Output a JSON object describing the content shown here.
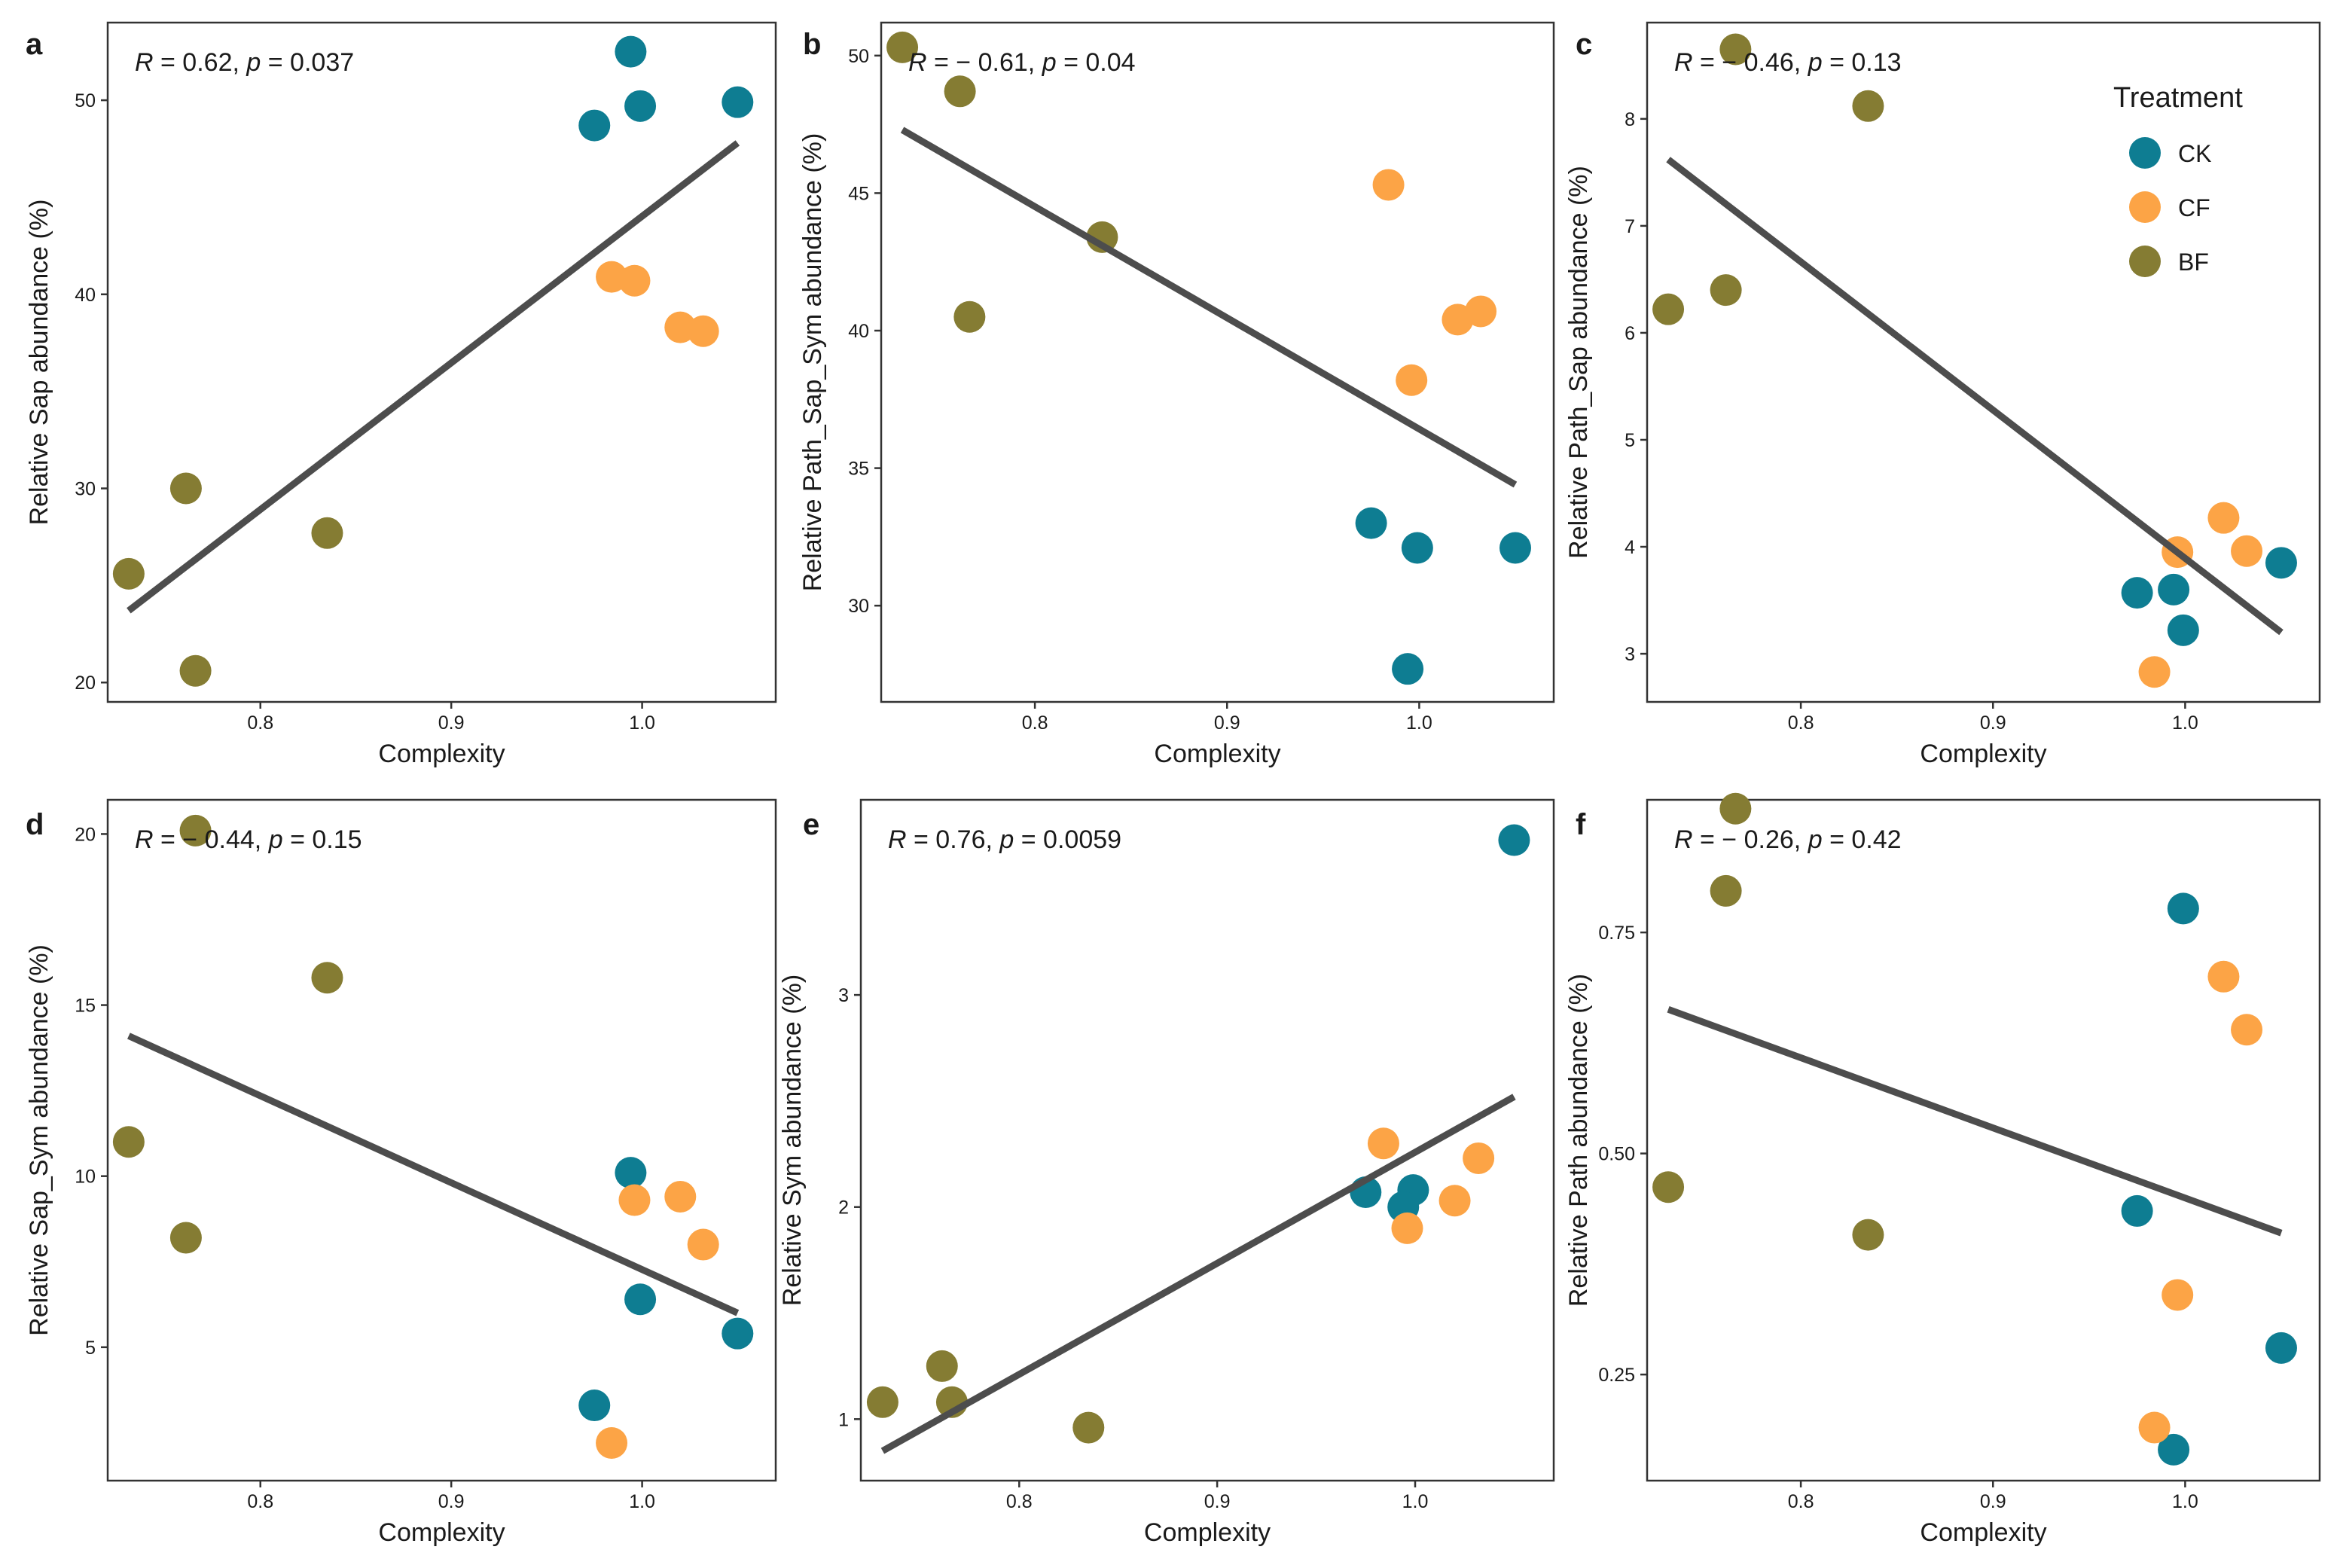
{
  "colors": {
    "CK": "#0e7d92",
    "CF": "#fca446",
    "BF": "#857c33",
    "fit_line": "#4d4d4d",
    "frame": "#333333"
  },
  "legend": {
    "title": "Treatment",
    "items": [
      {
        "key": "CK",
        "label": "CK"
      },
      {
        "key": "CF",
        "label": "CF"
      },
      {
        "key": "BF",
        "label": "BF"
      }
    ]
  },
  "chart_data": [
    {
      "panel": "a",
      "type": "scatter",
      "xlabel": "Complexity",
      "ylabel": "Relative Sap abundance (%)",
      "stat": {
        "r": "0.62",
        "p": "0.037"
      },
      "xlim": [
        0.72,
        1.07
      ],
      "ylim": [
        19,
        54
      ],
      "xticks": [
        0.8,
        0.9,
        1.0
      ],
      "xtick_labels": [
        "0.8",
        "0.9",
        "1.0"
      ],
      "yticks": [
        20,
        30,
        40,
        50
      ],
      "ytick_labels": [
        "20",
        "30",
        "40",
        "50"
      ],
      "fit": {
        "x": [
          0.731,
          1.05
        ],
        "y": [
          23.7,
          47.8
        ]
      },
      "points": [
        {
          "x": 0.994,
          "y": 52.5,
          "group": "CK"
        },
        {
          "x": 0.999,
          "y": 49.7,
          "group": "CK"
        },
        {
          "x": 1.05,
          "y": 49.9,
          "group": "CK"
        },
        {
          "x": 0.975,
          "y": 48.7,
          "group": "CK"
        },
        {
          "x": 0.984,
          "y": 40.9,
          "group": "CF"
        },
        {
          "x": 0.996,
          "y": 40.7,
          "group": "CF"
        },
        {
          "x": 1.02,
          "y": 38.3,
          "group": "CF"
        },
        {
          "x": 1.032,
          "y": 38.1,
          "group": "CF"
        },
        {
          "x": 0.731,
          "y": 25.6,
          "group": "BF"
        },
        {
          "x": 0.761,
          "y": 30.0,
          "group": "BF"
        },
        {
          "x": 0.766,
          "y": 20.6,
          "group": "BF"
        },
        {
          "x": 0.835,
          "y": 27.7,
          "group": "BF"
        }
      ]
    },
    {
      "panel": "b",
      "type": "scatter",
      "xlabel": "Complexity",
      "ylabel": "Relative Path_Sap_Sym abundance (%)",
      "stat": {
        "r": "− 0.61",
        "p": "0.04"
      },
      "xlim": [
        0.72,
        1.07
      ],
      "ylim": [
        26.5,
        51.2
      ],
      "xticks": [
        0.8,
        0.9,
        1.0
      ],
      "xtick_labels": [
        "0.8",
        "0.9",
        "1.0"
      ],
      "yticks": [
        30,
        35,
        40,
        45,
        50
      ],
      "ytick_labels": [
        "30",
        "35",
        "40",
        "45",
        "50"
      ],
      "fit": {
        "x": [
          0.731,
          1.05
        ],
        "y": [
          47.3,
          34.4
        ]
      },
      "points": [
        {
          "x": 0.975,
          "y": 33.0,
          "group": "CK"
        },
        {
          "x": 0.999,
          "y": 32.1,
          "group": "CK"
        },
        {
          "x": 1.05,
          "y": 32.1,
          "group": "CK"
        },
        {
          "x": 0.994,
          "y": 27.7,
          "group": "CK"
        },
        {
          "x": 0.984,
          "y": 45.3,
          "group": "CF"
        },
        {
          "x": 0.996,
          "y": 38.2,
          "group": "CF"
        },
        {
          "x": 1.02,
          "y": 40.4,
          "group": "CF"
        },
        {
          "x": 1.032,
          "y": 40.7,
          "group": "CF"
        },
        {
          "x": 0.731,
          "y": 50.3,
          "group": "BF"
        },
        {
          "x": 0.761,
          "y": 48.7,
          "group": "BF"
        },
        {
          "x": 0.766,
          "y": 40.5,
          "group": "BF"
        },
        {
          "x": 0.835,
          "y": 43.4,
          "group": "BF"
        }
      ]
    },
    {
      "panel": "c",
      "type": "scatter",
      "xlabel": "Complexity",
      "ylabel": "Relative Path_Sap abundance (%)",
      "stat": {
        "r": "− 0.46",
        "p": "0.13"
      },
      "xlim": [
        0.72,
        1.07
      ],
      "ylim": [
        2.55,
        8.9
      ],
      "xticks": [
        0.8,
        0.9,
        1.0
      ],
      "xtick_labels": [
        "0.8",
        "0.9",
        "1.0"
      ],
      "yticks": [
        3,
        4,
        5,
        6,
        7,
        8
      ],
      "ytick_labels": [
        "3",
        "4",
        "5",
        "6",
        "7",
        "8"
      ],
      "fit": {
        "x": [
          0.731,
          1.05
        ],
        "y": [
          7.62,
          3.2
        ]
      },
      "points": [
        {
          "x": 0.975,
          "y": 3.57,
          "group": "CK"
        },
        {
          "x": 0.994,
          "y": 3.6,
          "group": "CK"
        },
        {
          "x": 0.999,
          "y": 3.22,
          "group": "CK"
        },
        {
          "x": 1.05,
          "y": 3.85,
          "group": "CK"
        },
        {
          "x": 0.984,
          "y": 2.83,
          "group": "CF"
        },
        {
          "x": 0.996,
          "y": 3.95,
          "group": "CF"
        },
        {
          "x": 1.02,
          "y": 4.27,
          "group": "CF"
        },
        {
          "x": 1.032,
          "y": 3.96,
          "group": "CF"
        },
        {
          "x": 0.731,
          "y": 6.22,
          "group": "BF"
        },
        {
          "x": 0.761,
          "y": 6.4,
          "group": "BF"
        },
        {
          "x": 0.766,
          "y": 8.65,
          "group": "BF"
        },
        {
          "x": 0.835,
          "y": 8.12,
          "group": "BF"
        }
      ]
    },
    {
      "panel": "d",
      "type": "scatter",
      "xlabel": "Complexity",
      "ylabel": "Relative Sap_Sym abundance (%)",
      "stat": {
        "r": "− 0.44",
        "p": "0.15"
      },
      "xlim": [
        0.72,
        1.07
      ],
      "ylim": [
        1.1,
        21.0
      ],
      "xticks": [
        0.8,
        0.9,
        1.0
      ],
      "xtick_labels": [
        "0.8",
        "0.9",
        "1.0"
      ],
      "yticks": [
        5,
        10,
        15,
        20
      ],
      "ytick_labels": [
        "5",
        "10",
        "15",
        "20"
      ],
      "fit": {
        "x": [
          0.731,
          1.05
        ],
        "y": [
          14.1,
          6.0
        ]
      },
      "points": [
        {
          "x": 0.994,
          "y": 10.1,
          "group": "CK"
        },
        {
          "x": 0.999,
          "y": 6.4,
          "group": "CK"
        },
        {
          "x": 1.05,
          "y": 5.4,
          "group": "CK"
        },
        {
          "x": 0.975,
          "y": 3.3,
          "group": "CK"
        },
        {
          "x": 0.996,
          "y": 9.3,
          "group": "CF"
        },
        {
          "x": 1.02,
          "y": 9.4,
          "group": "CF"
        },
        {
          "x": 1.032,
          "y": 8.0,
          "group": "CF"
        },
        {
          "x": 0.984,
          "y": 2.2,
          "group": "CF"
        },
        {
          "x": 0.766,
          "y": 20.1,
          "group": "BF"
        },
        {
          "x": 0.835,
          "y": 15.8,
          "group": "BF"
        },
        {
          "x": 0.731,
          "y": 11.0,
          "group": "BF"
        },
        {
          "x": 0.761,
          "y": 8.2,
          "group": "BF"
        }
      ]
    },
    {
      "panel": "e",
      "type": "scatter",
      "xlabel": "Complexity",
      "ylabel": "Relative Sym abundance (%)",
      "stat": {
        "r": "0.76",
        "p": "0.0059"
      },
      "xlim": [
        0.72,
        1.07
      ],
      "ylim": [
        0.71,
        3.92
      ],
      "xticks": [
        0.8,
        0.9,
        1.0
      ],
      "xtick_labels": [
        "0.8",
        "0.9",
        "1.0"
      ],
      "yticks": [
        1,
        2,
        3
      ],
      "ytick_labels": [
        "1",
        "2",
        "3"
      ],
      "fit": {
        "x": [
          0.731,
          1.05
        ],
        "y": [
          0.85,
          2.52
        ]
      },
      "points": [
        {
          "x": 1.05,
          "y": 3.73,
          "group": "CK"
        },
        {
          "x": 0.975,
          "y": 2.07,
          "group": "CK"
        },
        {
          "x": 0.999,
          "y": 2.08,
          "group": "CK"
        },
        {
          "x": 0.994,
          "y": 2.0,
          "group": "CK"
        },
        {
          "x": 0.984,
          "y": 2.3,
          "group": "CF"
        },
        {
          "x": 1.032,
          "y": 2.23,
          "group": "CF"
        },
        {
          "x": 1.02,
          "y": 2.03,
          "group": "CF"
        },
        {
          "x": 0.996,
          "y": 1.9,
          "group": "CF"
        },
        {
          "x": 0.731,
          "y": 1.08,
          "group": "BF"
        },
        {
          "x": 0.761,
          "y": 1.25,
          "group": "BF"
        },
        {
          "x": 0.766,
          "y": 1.08,
          "group": "BF"
        },
        {
          "x": 0.835,
          "y": 0.96,
          "group": "BF"
        }
      ]
    },
    {
      "panel": "f",
      "type": "scatter",
      "xlabel": "Complexity",
      "ylabel": "Relative Path abundance (%)",
      "stat": {
        "r": "− 0.26",
        "p": "0.42"
      },
      "xlim": [
        0.72,
        1.07
      ],
      "ylim": [
        0.13,
        0.9
      ],
      "xticks": [
        0.8,
        0.9,
        1.0
      ],
      "xtick_labels": [
        "0.8",
        "0.9",
        "1.0"
      ],
      "yticks": [
        0.25,
        0.5,
        0.75
      ],
      "ytick_labels": [
        "0.25",
        "0.50",
        "0.75"
      ],
      "fit": {
        "x": [
          0.731,
          1.05
        ],
        "y": [
          0.663,
          0.41
        ]
      },
      "points": [
        {
          "x": 0.999,
          "y": 0.777,
          "group": "CK"
        },
        {
          "x": 0.975,
          "y": 0.435,
          "group": "CK"
        },
        {
          "x": 1.05,
          "y": 0.28,
          "group": "CK"
        },
        {
          "x": 0.994,
          "y": 0.165,
          "group": "CK"
        },
        {
          "x": 1.02,
          "y": 0.7,
          "group": "CF"
        },
        {
          "x": 1.032,
          "y": 0.64,
          "group": "CF"
        },
        {
          "x": 0.996,
          "y": 0.34,
          "group": "CF"
        },
        {
          "x": 0.984,
          "y": 0.19,
          "group": "CF"
        },
        {
          "x": 0.766,
          "y": 0.89,
          "group": "BF"
        },
        {
          "x": 0.761,
          "y": 0.797,
          "group": "BF"
        },
        {
          "x": 0.731,
          "y": 0.462,
          "group": "BF"
        },
        {
          "x": 0.835,
          "y": 0.408,
          "group": "BF"
        }
      ]
    }
  ]
}
